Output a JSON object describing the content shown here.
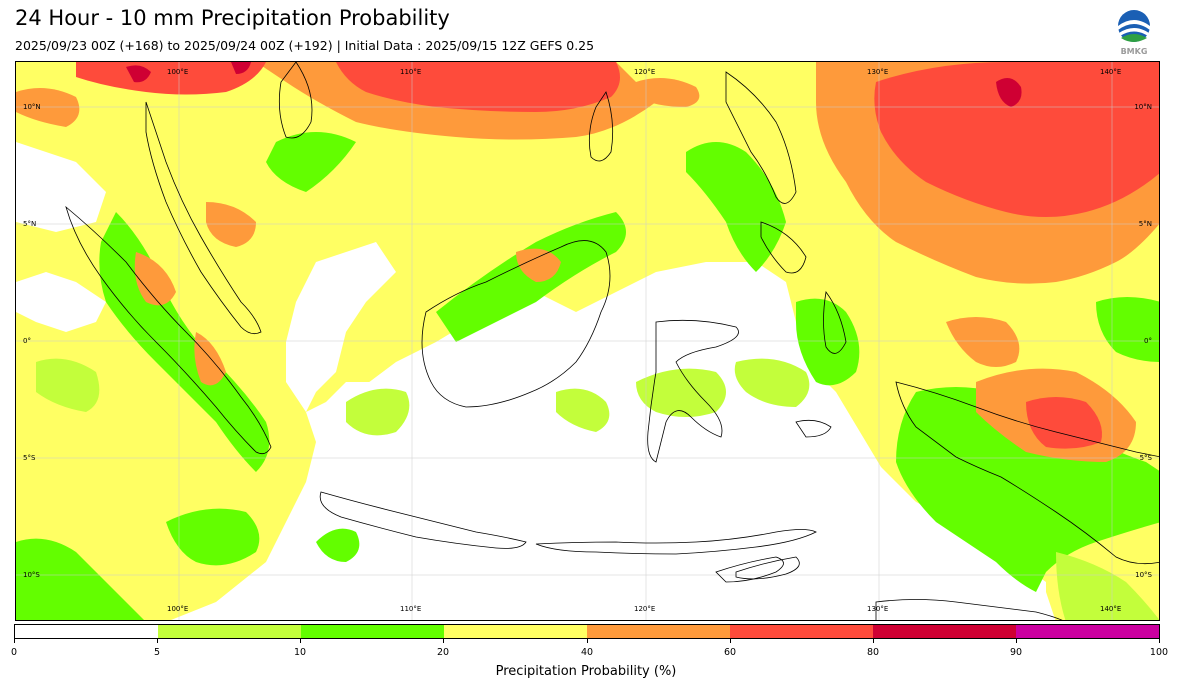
{
  "header": {
    "title": "24 Hour - 10 mm Precipitation Probability",
    "subtitle": "2025/09/23 00Z (+168) to 2025/09/24 00Z (+192) | Initial Data : 2025/09/15 12Z GEFS 0.25",
    "logo_text": "BMKG"
  },
  "map": {
    "lon_labels": [
      "100°E",
      "110°E",
      "120°E",
      "130°E",
      "140°E"
    ],
    "lat_labels": [
      "10°N",
      "5°N",
      "0°",
      "5°S",
      "10°S"
    ],
    "colors": {
      "band_5": "#c3fe3b",
      "band_10": "#63fe00",
      "band_20": "#ffff63",
      "band_40": "#fe9a3b",
      "band_60": "#fe4b3b",
      "band_80": "#cf0033",
      "band_90": "#cb00a0",
      "coastline": "#000000",
      "grid": "#cccccc"
    }
  },
  "colorbar": {
    "label": "Precipitation Probability (%)",
    "ticks": [
      "0",
      "5",
      "10",
      "20",
      "40",
      "60",
      "80",
      "90",
      "100"
    ],
    "colors": [
      "#ffffff",
      "#c3fe3b",
      "#63fe00",
      "#ffff63",
      "#fe9a3b",
      "#fe4b3b",
      "#cf0033",
      "#cb00a0"
    ]
  }
}
